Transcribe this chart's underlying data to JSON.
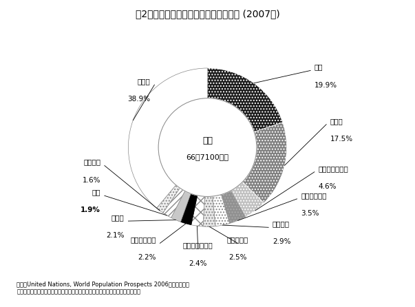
{
  "title": "図2　世界人口に占める各国人口の割合 (2007年)",
  "center_line1": "世界",
  "center_line2": "66億7100万人",
  "source1": "資料：United Nations, ",
  "source1_italic": "World Population Prospects",
  "source1_end": " 2006年版による。",
  "source2": "ただし，日本は国立社会保障・人口問題研究所「日本の将来推計人口」による。",
  "slices": [
    {
      "label": "中国",
      "pct": 19.9,
      "fc": "#1a1a1a",
      "hatch": "....",
      "ec": "#ffffff"
    },
    {
      "label": "インド",
      "pct": 17.5,
      "fc": "#808080",
      "hatch": "....",
      "ec": "#ffffff"
    },
    {
      "label": "アメリカ合衆国",
      "pct": 4.6,
      "fc": "#c0c0c0",
      "hatch": "....",
      "ec": "#ffffff"
    },
    {
      "label": "インドネシア",
      "pct": 3.5,
      "fc": "#909090",
      "hatch": "....",
      "ec": "#aaaaaa"
    },
    {
      "label": "ブラジル",
      "pct": 2.9,
      "fc": "#ffffff",
      "hatch": "....",
      "ec": "#888888"
    },
    {
      "label": "パキスタン",
      "pct": 2.5,
      "fc": "#e8e8e8",
      "hatch": "....",
      "ec": "#888888"
    },
    {
      "label": "バングラデシュ",
      "pct": 2.4,
      "fc": "#ffffff",
      "hatch": "xx",
      "ec": "#888888"
    },
    {
      "label": "ナイジェリア",
      "pct": 2.2,
      "fc": "#000000",
      "hatch": "",
      "ec": "#000000"
    },
    {
      "label": "ロシア",
      "pct": 2.1,
      "fc": "#c8c8c8",
      "hatch": "",
      "ec": "#888888"
    },
    {
      "label": "日本",
      "pct": 1.9,
      "fc": "#ffffff",
      "hatch": "////",
      "ec": "#888888"
    },
    {
      "label": "メキシコ",
      "pct": 1.6,
      "fc": "#f0f0f0",
      "hatch": "....",
      "ec": "#888888"
    },
    {
      "label": "その他",
      "pct": 38.9,
      "fc": "#ffffff",
      "hatch": "",
      "ec": "#888888"
    }
  ],
  "bold_labels": [
    "日本"
  ],
  "outer_r": 1.0,
  "inner_r": 0.62,
  "start_angle": 90.0
}
